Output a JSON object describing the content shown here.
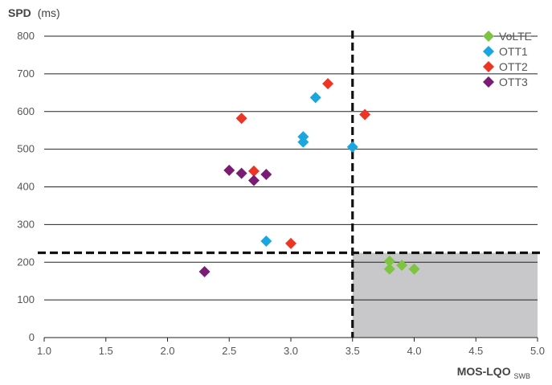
{
  "chart_data": {
    "type": "scatter",
    "title": "",
    "ylabel_bold": "SPD",
    "ylabel_unit": "(ms)",
    "xlabel_main": "MOS-LQO",
    "xlabel_sub": "SWB",
    "xlim": [
      1.0,
      5.0
    ],
    "ylim": [
      0,
      800
    ],
    "x_ticks": [
      "1.0",
      "1.5",
      "2.0",
      "2.5",
      "3.0",
      "3.5",
      "4.0",
      "4.5",
      "5.0"
    ],
    "y_ticks": [
      "0",
      "100",
      "200",
      "300",
      "400",
      "500",
      "600",
      "700",
      "800"
    ],
    "grid": "horizontal",
    "legend_position": "top-right",
    "threshold_x": 3.5,
    "threshold_y": 225,
    "shaded_region": {
      "x": [
        3.5,
        5.0
      ],
      "y": [
        0,
        225
      ],
      "color": "#c8c8ca"
    },
    "series": [
      {
        "name": "VoLTE",
        "color": "#7dc443",
        "points": [
          [
            3.8,
            203
          ],
          [
            3.8,
            182
          ],
          [
            3.9,
            192
          ],
          [
            4.0,
            182
          ]
        ]
      },
      {
        "name": "OTT1",
        "color": "#1aa7e0",
        "points": [
          [
            3.2,
            637
          ],
          [
            3.1,
            533
          ],
          [
            3.1,
            519
          ],
          [
            3.5,
            506
          ],
          [
            2.8,
            256
          ]
        ]
      },
      {
        "name": "OTT2",
        "color": "#ee3424",
        "points": [
          [
            3.3,
            674
          ],
          [
            3.6,
            592
          ],
          [
            2.6,
            582
          ],
          [
            2.7,
            442
          ],
          [
            3.0,
            250
          ]
        ]
      },
      {
        "name": "OTT3",
        "color": "#7a1b74",
        "points": [
          [
            2.5,
            444
          ],
          [
            2.6,
            436
          ],
          [
            2.8,
            433
          ],
          [
            2.7,
            417
          ],
          [
            2.3,
            175
          ]
        ]
      }
    ]
  }
}
